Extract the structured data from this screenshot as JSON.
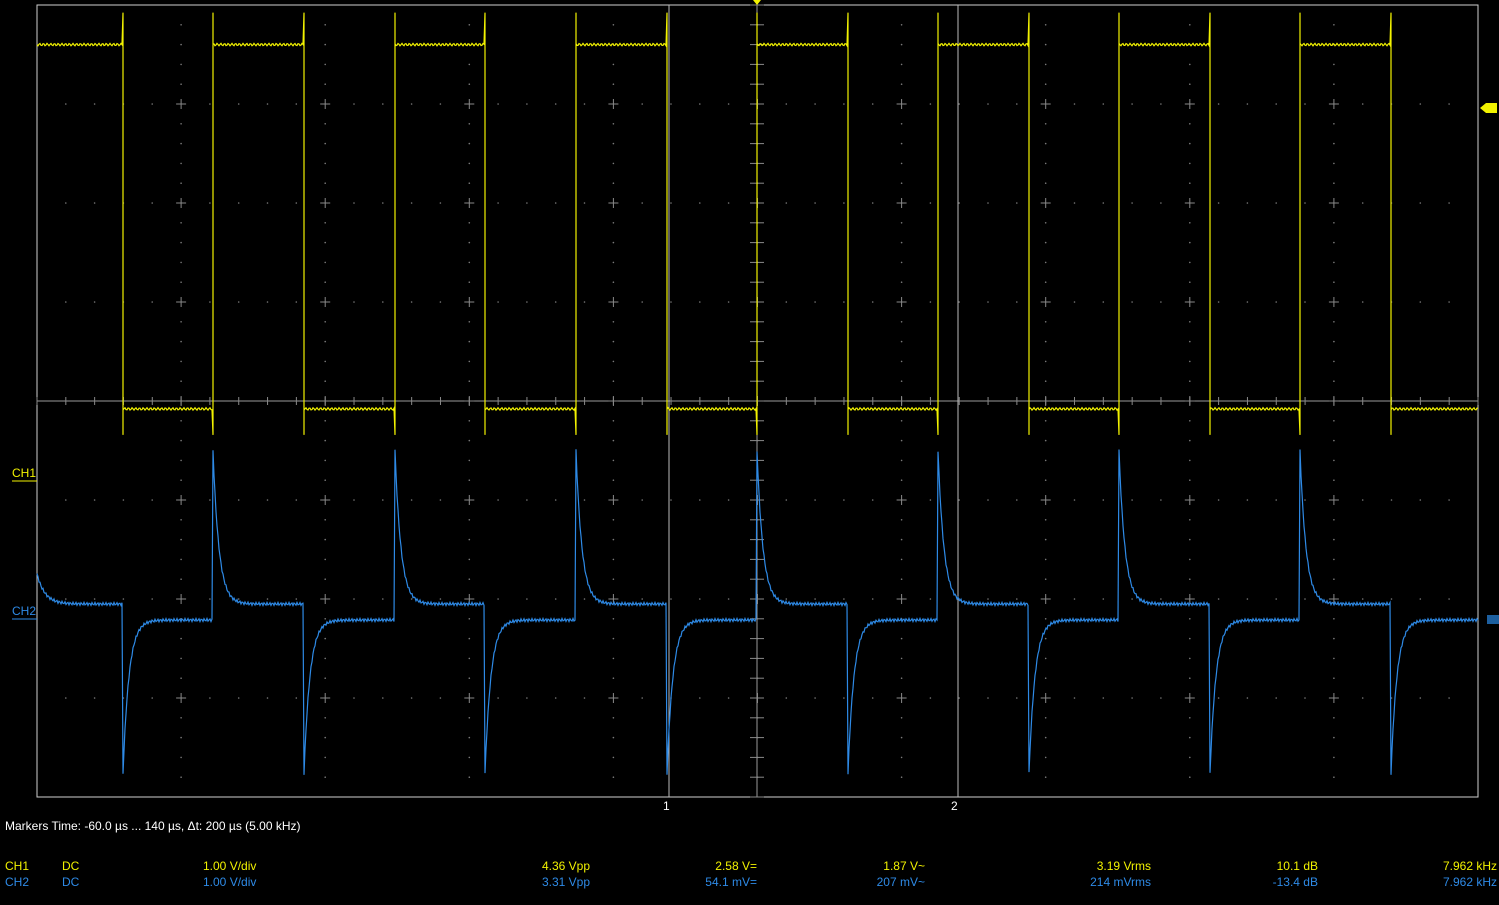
{
  "channels": {
    "ch1": {
      "label": "CH1",
      "color": "#f2f200"
    },
    "ch2": {
      "label": "CH2",
      "color": "#2e8ae6"
    }
  },
  "cursors": {
    "c1_label": "1",
    "c2_label": "2"
  },
  "markers": {
    "text": "Markers  Time: -60.0 µs ... 140 µs,  Δt: 200 µs (5.00 kHz)"
  },
  "measurements": [
    {
      "channel": "CH1",
      "coupling": "DC",
      "scale": "1.00 V/div",
      "vpp": "4.36 Vpp",
      "mean": "2.58 V=",
      "ac": "1.87 V~",
      "rms": "3.19 Vrms",
      "db": "10.1 dB",
      "freq": "7.962 kHz"
    },
    {
      "channel": "CH2",
      "coupling": "DC",
      "scale": "1.00 V/div",
      "vpp": "3.31 Vpp",
      "mean": "54.1 mV=",
      "ac": "207 mV~",
      "rms": "214 mVrms",
      "db": "-13.4 dB",
      "freq": "7.962 kHz"
    }
  ],
  "waveform": {
    "edges": [
      123,
      213,
      304,
      395,
      485,
      576,
      667,
      757,
      848,
      938,
      1029,
      1119,
      1210,
      1300,
      1391
    ],
    "ch1_high_v": 3.6,
    "ch1_low_v": -0.08,
    "ch2_peak_pos_v": 1.55,
    "ch2_peak_neg_v": -1.55
  }
}
